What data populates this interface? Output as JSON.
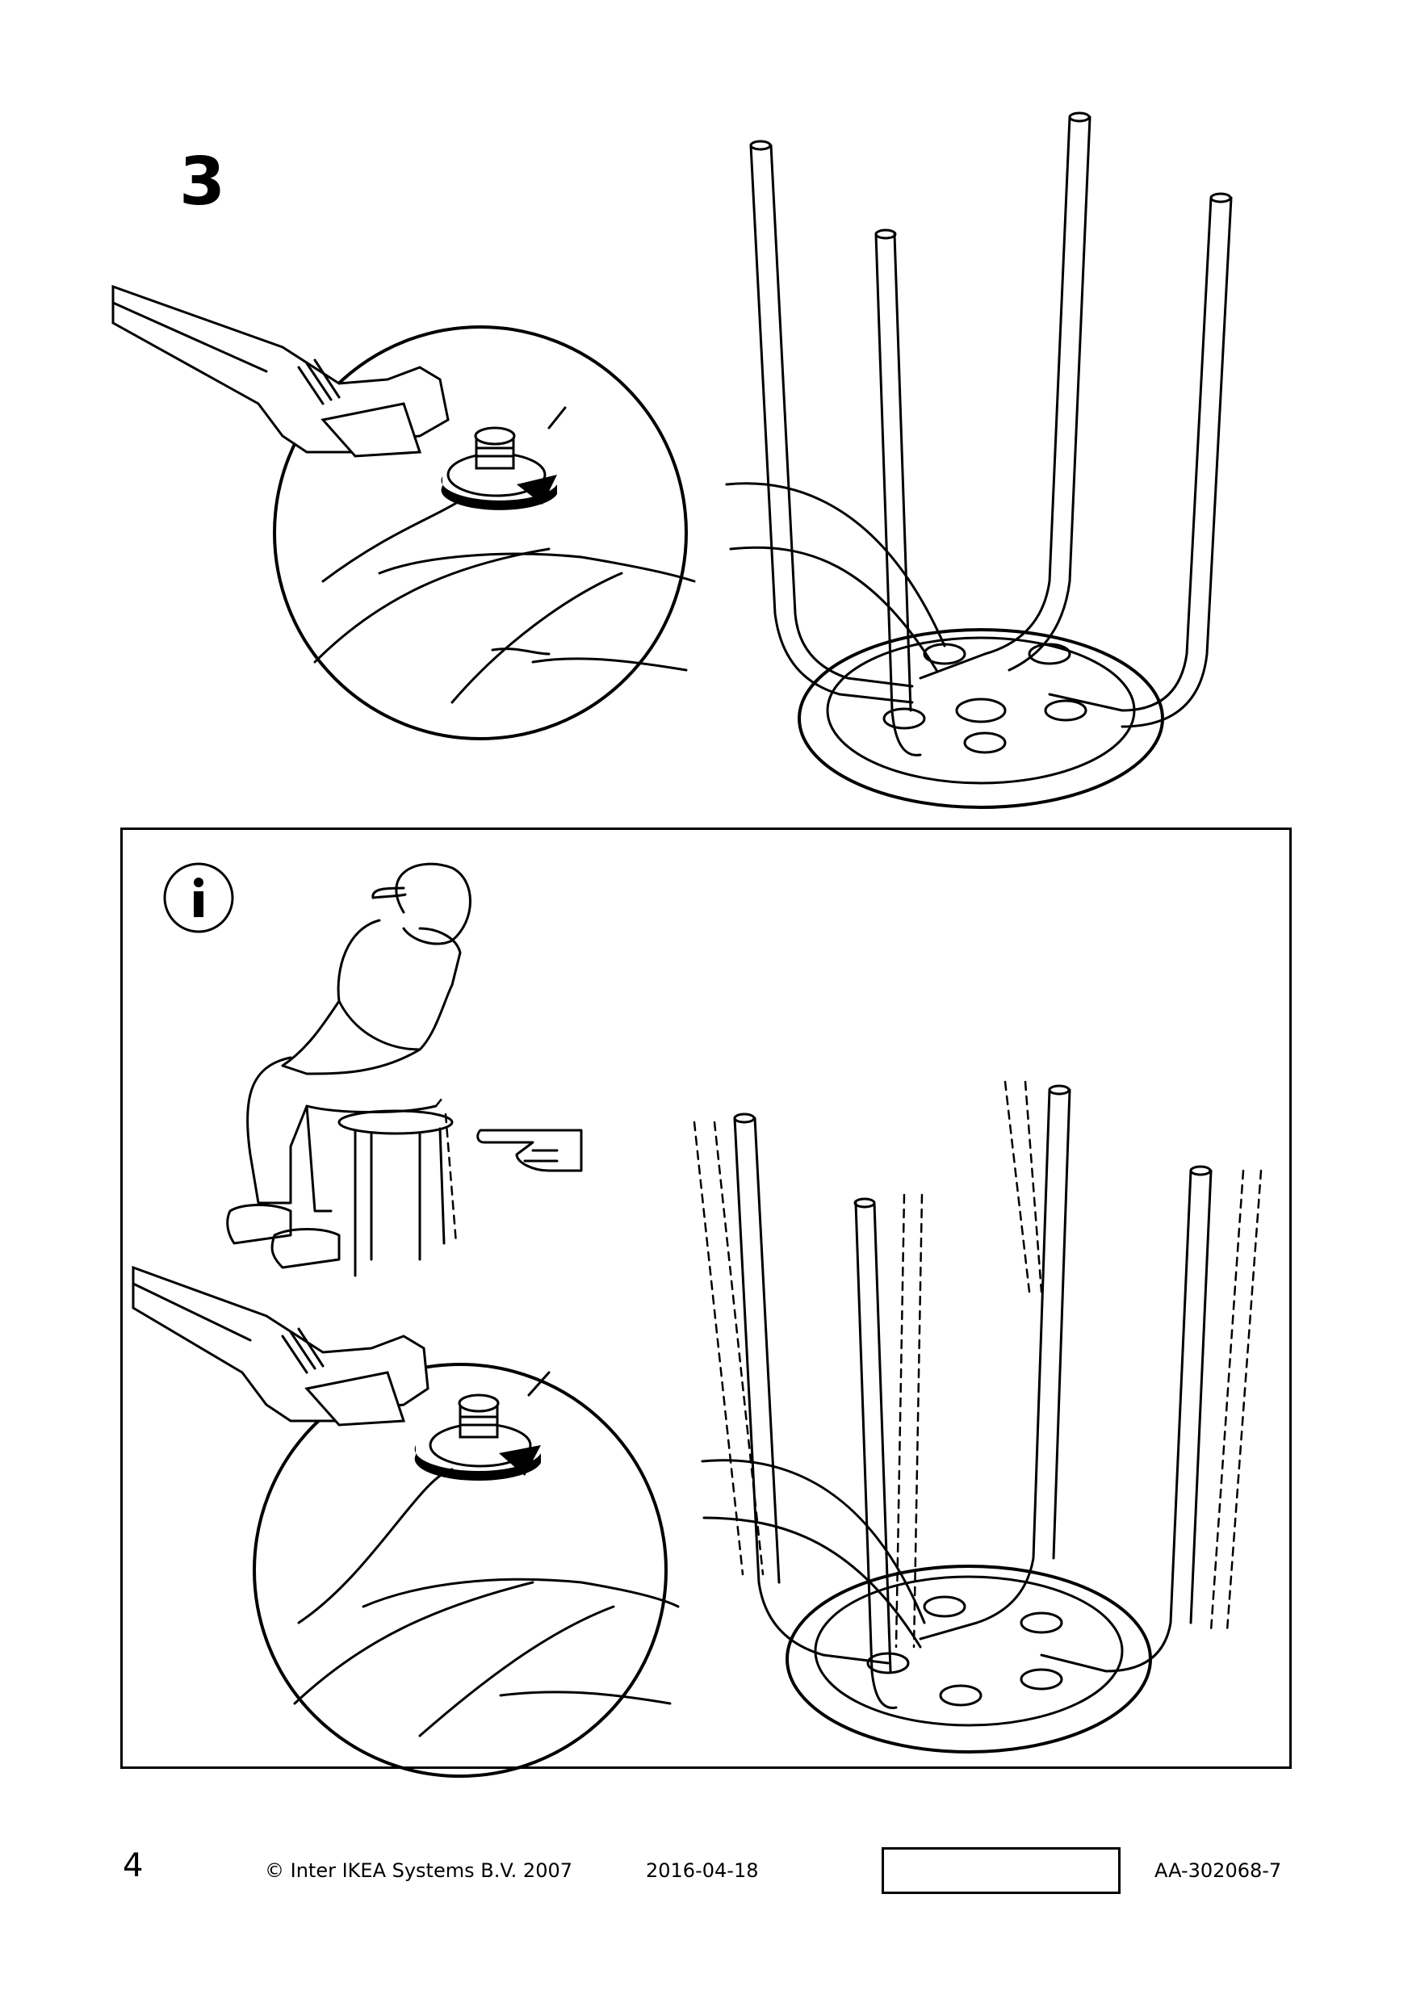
{
  "step": {
    "number": "3"
  },
  "info_panel": {
    "icon": "info-icon",
    "pointing_hand": "pointing-hand-icon"
  },
  "footer": {
    "page_number": "4",
    "copyright": "© Inter IKEA Systems B.V. 2007",
    "date": "2016-04-18",
    "article_code": "AA-302068-7"
  }
}
